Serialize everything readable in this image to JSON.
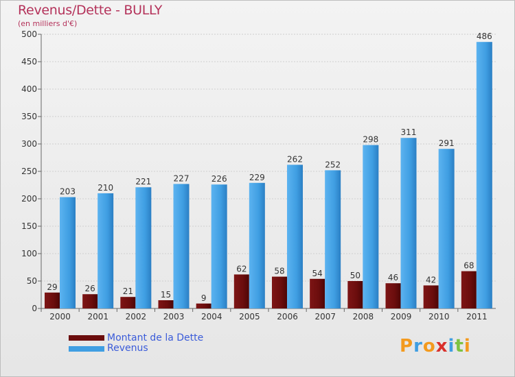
{
  "title": "Revenus/Dette - BULLY",
  "subtitle": "(en milliers d'€)",
  "colors": {
    "dette": "#6b0d0d",
    "revenus": "#3f9ee2",
    "title": "#b4325a",
    "legend_text": "#3a5bd9"
  },
  "chart_data": {
    "type": "bar",
    "title": "Revenus/Dette - BULLY",
    "ylabel": "(en milliers d'€)",
    "xlabel": "",
    "ylim": [
      0,
      500
    ],
    "yticks": [
      0,
      50,
      100,
      150,
      200,
      250,
      300,
      350,
      400,
      450,
      500
    ],
    "categories": [
      "2000",
      "2001",
      "2002",
      "2003",
      "2004",
      "2005",
      "2006",
      "2007",
      "2008",
      "2009",
      "2010",
      "2011"
    ],
    "series": [
      {
        "name": "Montant de la Dette",
        "values": [
          29,
          26,
          21,
          15,
          9,
          62,
          58,
          54,
          50,
          46,
          42,
          68
        ]
      },
      {
        "name": "Revenus",
        "values": [
          203,
          210,
          221,
          227,
          226,
          229,
          262,
          252,
          298,
          311,
          291,
          486
        ]
      }
    ]
  },
  "legend": [
    {
      "label": "Montant de la Dette"
    },
    {
      "label": "Revenus"
    }
  ],
  "logo": {
    "letters": [
      "P",
      "r",
      "o",
      "x",
      "i",
      "t",
      "i"
    ]
  }
}
